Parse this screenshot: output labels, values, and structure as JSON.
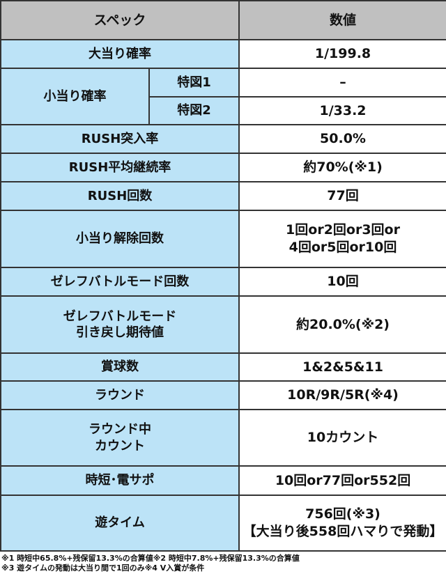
{
  "header": {
    "spec": "スペック",
    "value": "数値"
  },
  "rows": [
    {
      "label": "大当り確率",
      "value": "1/199.8"
    },
    {
      "label": "小当り確率",
      "sub": [
        {
          "label": "特図1",
          "value": "–"
        },
        {
          "label": "特図2",
          "value": "1/33.2"
        }
      ]
    },
    {
      "label": "RUSH突入率",
      "value": "50.0%"
    },
    {
      "label": "RUSH平均継続率",
      "value": "約70%(※1)"
    },
    {
      "label": "RUSH回数",
      "value": "77回"
    },
    {
      "label": "小当り解除回数",
      "value_line1": "1回or2回or3回or",
      "value_line2": "4回or5回or10回"
    },
    {
      "label": "ゼレフバトルモード回数",
      "value": "10回"
    },
    {
      "label_line1": "ゼレフバトルモード",
      "label_line2": "引き戻し期待値",
      "value": "約20.0%(※2)"
    },
    {
      "label": "賞球数",
      "value": "1&2&5&11"
    },
    {
      "label": "ラウンド",
      "value": "10R/9R/5R(※4)"
    },
    {
      "label_line1": "ラウンド中",
      "label_line2": "カウント",
      "value": "10カウント"
    },
    {
      "label": "時短･電サポ",
      "value": "10回or77回or552回"
    },
    {
      "label": "遊タイム",
      "value_line1": "756回(※3)",
      "value_line2": "【大当り後558回ハマりで発動】"
    }
  ],
  "notes": [
    "※1 時短中65.8%+残保留13.3%の合算値※2 時短中7.8%+残保留13.3%の合算値",
    "※3 遊タイムの発動は大当り間で1回のみ※4 V入賞が条件"
  ],
  "colors": {
    "header_bg": "#c0c0c0",
    "label_bg": "#bce3f7",
    "border": "#333333"
  }
}
